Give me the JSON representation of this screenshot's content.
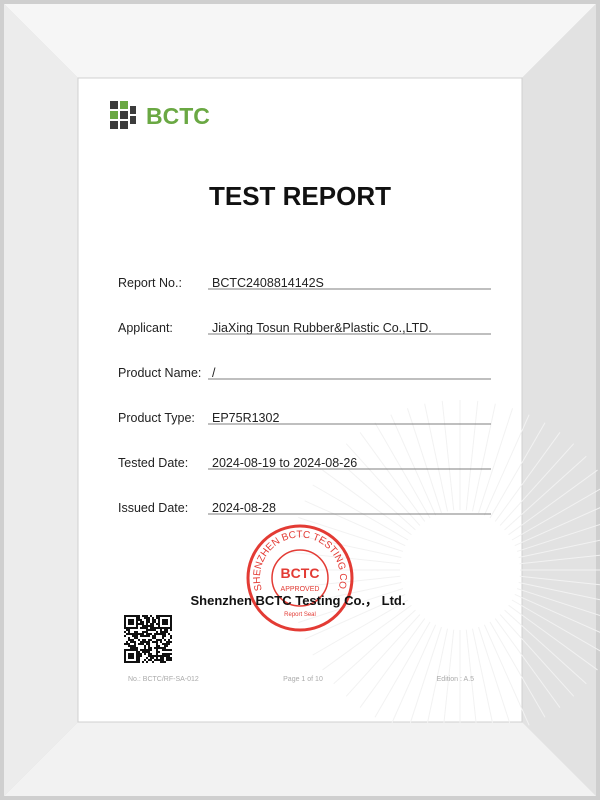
{
  "header": {
    "logo": "BCTC",
    "title": "TEST REPORT"
  },
  "fields": [
    {
      "label": "Report No.:",
      "value": "BCTC2408814142S"
    },
    {
      "label": "Applicant:",
      "value": "JiaXing Tosun Rubber&Plastic Co.,LTD."
    },
    {
      "label": "Product Name:",
      "value": "/"
    },
    {
      "label": "Product Type:",
      "value": "EP75R1302"
    },
    {
      "label": "Tested Date:",
      "value": "2024-08-19 to 2024-08-26"
    },
    {
      "label": "Issued Date:",
      "value": "2024-08-28"
    }
  ],
  "seal": {
    "ring": "SHENZHEN BCTC TESTING CO.,LTD.",
    "name": "BCTC",
    "status": "APPROVED",
    "caption": "Report Seal"
  },
  "company": "Shenzhen BCTC Testing Co.， Ltd.",
  "footer": {
    "form": "No.: BCTC/RF-SA-012",
    "page": "Page 1 of 10",
    "edition": "Edition : A.5"
  }
}
